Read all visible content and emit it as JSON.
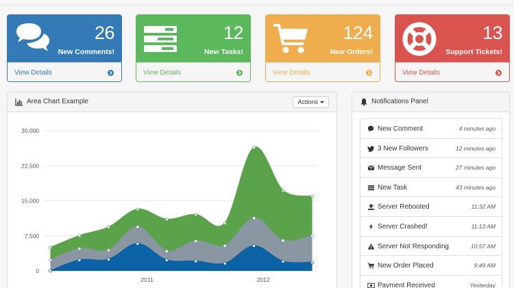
{
  "cards": [
    {
      "number": "26",
      "label": "New Comments!",
      "link": "View Details",
      "icon": "comments-icon",
      "color": "#337ab7"
    },
    {
      "number": "12",
      "label": "New Tasks!",
      "link": "View Details",
      "icon": "tasks-icon",
      "color": "#5cb85c"
    },
    {
      "number": "124",
      "label": "New Orders!",
      "link": "View Details",
      "icon": "shopping-cart-icon",
      "color": "#f0ad4e"
    },
    {
      "number": "13",
      "label": "Support Tickets!",
      "link": "View Details",
      "icon": "life-ring-icon",
      "color": "#d9534f"
    }
  ],
  "area_panel": {
    "title": "Area Chart Example",
    "actions_label": "Actions"
  },
  "notifications": {
    "title": "Notifications Panel",
    "items": [
      {
        "text": "New Comment",
        "time": "4 minutes ago",
        "icon": "comment-icon"
      },
      {
        "text": "3 New Followers",
        "time": "12 minutes ago",
        "icon": "twitter-icon"
      },
      {
        "text": "Message Sent",
        "time": "27 minutes ago",
        "icon": "envelope-icon"
      },
      {
        "text": "New Task",
        "time": "43 minutes ago",
        "icon": "tasks-icon"
      },
      {
        "text": "Server Rebooted",
        "time": "11:32 AM",
        "icon": "upload-icon"
      },
      {
        "text": "Server Crashed!",
        "time": "11:13 AM",
        "icon": "bolt-icon"
      },
      {
        "text": "Server Not Responding",
        "time": "10:57 AM",
        "icon": "warning-icon"
      },
      {
        "text": "New Order Placed",
        "time": "9:49 AM",
        "icon": "shopping-cart-icon"
      },
      {
        "text": "Payment Received",
        "time": "Yesterday",
        "icon": "money-icon"
      }
    ]
  },
  "chart_data": {
    "type": "area",
    "y_ticks": [
      "0",
      "7,500",
      "15,000",
      "22,500",
      "30,000"
    ],
    "x_ticks": [
      {
        "label": "2011",
        "value": 2011.0
      },
      {
        "label": "2012",
        "value": 2012.0
      }
    ],
    "ylim": [
      0,
      30000
    ],
    "x": [
      2010.17,
      2010.42,
      2010.67,
      2010.92,
      2011.17,
      2011.42,
      2011.67,
      2011.92,
      2012.17,
      2012.42
    ],
    "series": [
      {
        "color": "#5aa34a",
        "values": [
          2666,
          2778,
          4912,
          3767,
          6810,
          5670,
          4820,
          15073,
          10687,
          8432
        ]
      },
      {
        "color": "#8a96a2",
        "values": [
          2294,
          2441,
          1969,
          3597,
          1914,
          4293,
          3795,
          5967,
          4460,
          5713
        ]
      },
      {
        "color": "#0b62a4",
        "values": [
          0,
          2294,
          2441,
          5801,
          2293,
          2070,
          1588,
          5324,
          2016,
          1791
        ]
      }
    ],
    "stack_order_note_source": "bottom-to-top"
  }
}
